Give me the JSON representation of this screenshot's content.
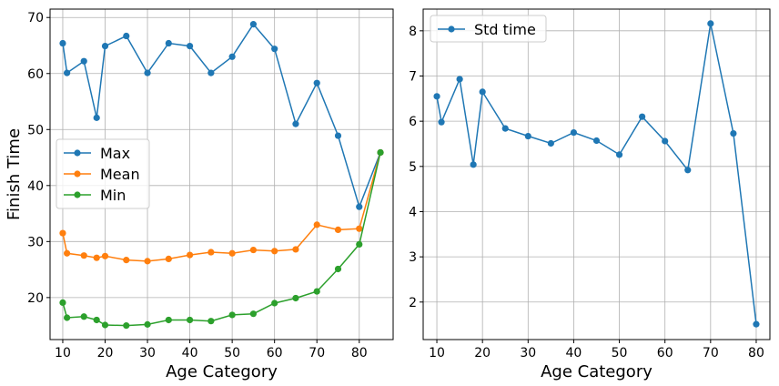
{
  "chart_data": [
    {
      "type": "line",
      "xlabel": "Age Category",
      "ylabel": "Finish Time",
      "xlim": [
        7,
        88
      ],
      "ylim": [
        12.5,
        71.5
      ],
      "xticks": [
        10,
        20,
        30,
        40,
        50,
        60,
        70,
        80
      ],
      "yticks": [
        20,
        30,
        40,
        50,
        60,
        70
      ],
      "grid": true,
      "legend_position": "center-left",
      "series": [
        {
          "name": "Max",
          "color": "#1f77b4",
          "x": [
            10,
            11,
            15,
            18,
            20,
            25,
            30,
            35,
            40,
            45,
            50,
            55,
            60,
            65,
            70,
            75,
            80,
            85
          ],
          "y": [
            65.4,
            60.1,
            62.2,
            52.1,
            64.9,
            66.7,
            60.1,
            65.4,
            64.9,
            60.1,
            63.0,
            68.8,
            64.4,
            51.0,
            58.3,
            48.9,
            36.2,
            45.9
          ]
        },
        {
          "name": "Mean",
          "color": "#ff7f0e",
          "x": [
            10,
            11,
            15,
            18,
            20,
            25,
            30,
            35,
            40,
            45,
            50,
            55,
            60,
            65,
            70,
            75,
            80,
            85
          ],
          "y": [
            31.5,
            27.9,
            27.5,
            27.1,
            27.4,
            26.7,
            26.5,
            26.9,
            27.6,
            28.1,
            27.9,
            28.5,
            28.3,
            28.6,
            33.0,
            32.1,
            32.3,
            45.9
          ]
        },
        {
          "name": "Min",
          "color": "#2ca02c",
          "x": [
            10,
            11,
            15,
            18,
            20,
            25,
            30,
            35,
            40,
            45,
            50,
            55,
            60,
            65,
            70,
            75,
            80,
            85
          ],
          "y": [
            19.1,
            16.4,
            16.6,
            16.0,
            15.1,
            15.0,
            15.2,
            16.0,
            16.0,
            15.8,
            16.9,
            17.1,
            19.0,
            19.9,
            21.1,
            25.1,
            29.5,
            45.9
          ]
        }
      ]
    },
    {
      "type": "line",
      "xlabel": "Age Category",
      "ylabel": "",
      "xlim": [
        7,
        83
      ],
      "ylim": [
        1.17,
        8.48
      ],
      "xticks": [
        10,
        20,
        30,
        40,
        50,
        60,
        70,
        80
      ],
      "yticks": [
        2,
        3,
        4,
        5,
        6,
        7,
        8
      ],
      "grid": true,
      "legend_position": "top-left",
      "series": [
        {
          "name": "Std time",
          "color": "#1f77b4",
          "x": [
            10,
            11,
            15,
            18,
            20,
            25,
            30,
            35,
            40,
            45,
            50,
            55,
            60,
            65,
            70,
            75,
            80
          ],
          "y": [
            6.55,
            5.98,
            6.93,
            5.04,
            6.65,
            5.84,
            5.67,
            5.51,
            5.75,
            5.57,
            5.26,
            6.1,
            5.56,
            4.92,
            8.16,
            5.73,
            1.51
          ]
        }
      ]
    }
  ]
}
